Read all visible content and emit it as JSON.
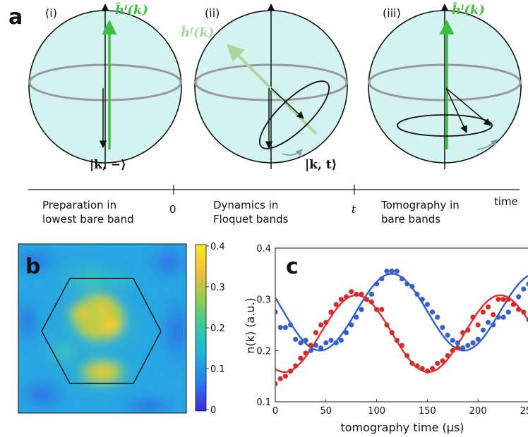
{
  "panel_a": {
    "letter": "a",
    "sub_i": "(i)",
    "sub_ii": "(ii)",
    "sub_iii": "(iii)",
    "label_h_initial": "ĥⁱ(k)",
    "label_h_floquet": "ĥᶠ(k)",
    "label_state_minus": "|k, −⟩",
    "label_state_t": "|k, t⟩",
    "timeline": {
      "stage1_line1": "Preparation in",
      "stage1_line2": "lowest bare band",
      "tick_zero": "0",
      "stage2_line1": "Dynamics in",
      "stage2_line2": "Floquet bands",
      "tick_t": "t",
      "stage3_line1": "Tomography in",
      "stage3_line2": "bare bands",
      "axis_label": "time"
    },
    "colors": {
      "sphere_fill": "#d3f3f0",
      "h_initial": "#3fbf3f",
      "h_floquet": "#a9d79f",
      "equator": "#9a9a9a",
      "motion_arrow": "#7e9a98"
    }
  },
  "panel_b": {
    "letter": "b",
    "colorbar_ticks": [
      "0.4",
      "0.3",
      "0.2",
      "0.1",
      "0"
    ]
  },
  "panel_c": {
    "letter": "c",
    "chart_data": {
      "type": "scatter",
      "xlabel": "tomography time (µs)",
      "ylabel": "n(k) (a.u.)",
      "xlim": [
        0,
        250
      ],
      "ylim": [
        0.1,
        0.4
      ],
      "x_ticks": [
        "0",
        "50",
        "100",
        "150",
        "200",
        "250"
      ],
      "y_ticks": [
        "0.1",
        "0.2",
        "0.3",
        "0.4"
      ],
      "series": [
        {
          "color": "#3a5fcd",
          "points": [
            [
              0,
              0.275
            ],
            [
              5,
              0.245
            ],
            [
              10,
              0.245
            ],
            [
              15,
              0.25
            ],
            [
              20,
              0.222
            ],
            [
              25,
              0.215
            ],
            [
              30,
              0.22
            ],
            [
              35,
              0.2
            ],
            [
              40,
              0.21
            ],
            [
              45,
              0.205
            ],
            [
              50,
              0.215
            ],
            [
              55,
              0.22
            ],
            [
              60,
              0.215
            ],
            [
              65,
              0.22
            ],
            [
              70,
              0.235
            ],
            [
              75,
              0.25
            ],
            [
              80,
              0.265
            ],
            [
              85,
              0.28
            ],
            [
              90,
              0.3
            ],
            [
              95,
              0.31
            ],
            [
              100,
              0.33
            ],
            [
              105,
              0.34
            ],
            [
              110,
              0.355
            ],
            [
              115,
              0.355
            ],
            [
              120,
              0.355
            ],
            [
              125,
              0.34
            ],
            [
              130,
              0.33
            ],
            [
              135,
              0.325
            ],
            [
              140,
              0.31
            ],
            [
              145,
              0.3
            ],
            [
              150,
              0.29
            ],
            [
              155,
              0.275
            ],
            [
              160,
              0.265
            ],
            [
              165,
              0.245
            ],
            [
              170,
              0.23
            ],
            [
              175,
              0.22
            ],
            [
              180,
              0.215
            ],
            [
              185,
              0.205
            ],
            [
              190,
              0.21
            ],
            [
              195,
              0.215
            ],
            [
              200,
              0.222
            ],
            [
              205,
              0.24
            ],
            [
              210,
              0.255
            ],
            [
              215,
              0.25
            ],
            [
              220,
              0.265
            ],
            [
              225,
              0.265
            ],
            [
              230,
              0.275
            ],
            [
              235,
              0.29
            ],
            [
              240,
              0.305
            ],
            [
              245,
              0.32
            ],
            [
              250,
              0.33
            ]
          ]
        },
        {
          "color": "#d62c2c",
          "points": [
            [
              0,
              0.135
            ],
            [
              5,
              0.145
            ],
            [
              10,
              0.15
            ],
            [
              15,
              0.16
            ],
            [
              20,
              0.17
            ],
            [
              25,
              0.185
            ],
            [
              30,
              0.195
            ],
            [
              35,
              0.21
            ],
            [
              40,
              0.235
            ],
            [
              45,
              0.25
            ],
            [
              50,
              0.255
            ],
            [
              55,
              0.275
            ],
            [
              60,
              0.29
            ],
            [
              65,
              0.3
            ],
            [
              70,
              0.305
            ],
            [
              75,
              0.315
            ],
            [
              80,
              0.31
            ],
            [
              85,
              0.31
            ],
            [
              90,
              0.3
            ],
            [
              95,
              0.295
            ],
            [
              100,
              0.28
            ],
            [
              105,
              0.28
            ],
            [
              110,
              0.25
            ],
            [
              115,
              0.235
            ],
            [
              120,
              0.22
            ],
            [
              125,
              0.21
            ],
            [
              130,
              0.19
            ],
            [
              135,
              0.175
            ],
            [
              140,
              0.17
            ],
            [
              145,
              0.165
            ],
            [
              150,
              0.16
            ],
            [
              155,
              0.165
            ],
            [
              160,
              0.175
            ],
            [
              165,
              0.18
            ],
            [
              170,
              0.19
            ],
            [
              175,
              0.2
            ],
            [
              180,
              0.205
            ],
            [
              185,
              0.235
            ],
            [
              190,
              0.24
            ],
            [
              195,
              0.265
            ],
            [
              200,
              0.25
            ],
            [
              205,
              0.275
            ],
            [
              210,
              0.285
            ],
            [
              215,
              0.27
            ],
            [
              220,
              0.3
            ],
            [
              225,
              0.3
            ],
            [
              230,
              0.3
            ],
            [
              235,
              0.29
            ],
            [
              240,
              0.28
            ],
            [
              245,
              0.275
            ],
            [
              250,
              0.26
            ]
          ]
        }
      ],
      "fits": [
        {
          "color": "#2f5fd0",
          "offset": 0.275,
          "amplitude": 0.075,
          "period_us": 142,
          "phase_us": 115
        },
        {
          "color": "#e03030",
          "offset": 0.233,
          "amplitude": 0.075,
          "period_us": 142,
          "phase_us": 80
        }
      ]
    }
  }
}
